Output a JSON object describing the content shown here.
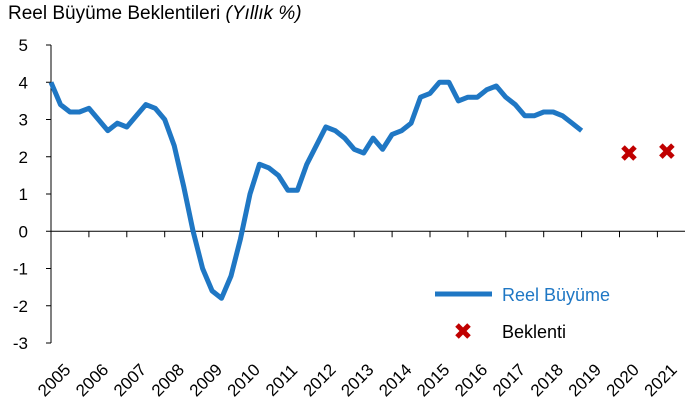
{
  "chart_data": {
    "type": "line",
    "title": "Reel Büyüme Beklentileri",
    "subtitle": "(Yıllık %)",
    "xlabel": "",
    "ylabel": "",
    "ylim": [
      -3,
      5
    ],
    "yticks": [
      "5",
      "4",
      "3",
      "2",
      "1",
      "0",
      "-1",
      "-2",
      "-3"
    ],
    "year_labels": [
      "2005",
      "2006",
      "2007",
      "2008",
      "2009",
      "2010",
      "2011",
      "2012",
      "2013",
      "2014",
      "2015",
      "2016",
      "2017",
      "2018",
      "2019",
      "2020",
      "2021"
    ],
    "grid": false,
    "legend_position": "bottom-right",
    "series": [
      {
        "name": "Reel Büyüme",
        "kind": "line",
        "color": "#1f77c4",
        "points": [
          [
            2005.0,
            4.0
          ],
          [
            2005.25,
            3.4
          ],
          [
            2005.5,
            3.2
          ],
          [
            2005.75,
            3.2
          ],
          [
            2006.0,
            3.3
          ],
          [
            2006.25,
            3.0
          ],
          [
            2006.5,
            2.7
          ],
          [
            2006.75,
            2.9
          ],
          [
            2007.0,
            2.8
          ],
          [
            2007.25,
            3.1
          ],
          [
            2007.5,
            3.4
          ],
          [
            2007.75,
            3.3
          ],
          [
            2008.0,
            3.0
          ],
          [
            2008.25,
            2.3
          ],
          [
            2008.5,
            1.2
          ],
          [
            2008.75,
            0.0
          ],
          [
            2009.0,
            -1.0
          ],
          [
            2009.25,
            -1.6
          ],
          [
            2009.5,
            -1.8
          ],
          [
            2009.75,
            -1.2
          ],
          [
            2010.0,
            -0.2
          ],
          [
            2010.25,
            1.0
          ],
          [
            2010.5,
            1.8
          ],
          [
            2010.75,
            1.7
          ],
          [
            2011.0,
            1.5
          ],
          [
            2011.25,
            1.1
          ],
          [
            2011.5,
            1.1
          ],
          [
            2011.75,
            1.8
          ],
          [
            2012.0,
            2.3
          ],
          [
            2012.25,
            2.8
          ],
          [
            2012.5,
            2.7
          ],
          [
            2012.75,
            2.5
          ],
          [
            2013.0,
            2.2
          ],
          [
            2013.25,
            2.1
          ],
          [
            2013.5,
            2.5
          ],
          [
            2013.75,
            2.2
          ],
          [
            2014.0,
            2.6
          ],
          [
            2014.25,
            2.7
          ],
          [
            2014.5,
            2.9
          ],
          [
            2014.75,
            3.6
          ],
          [
            2015.0,
            3.7
          ],
          [
            2015.25,
            4.0
          ],
          [
            2015.5,
            4.0
          ],
          [
            2015.75,
            3.5
          ],
          [
            2016.0,
            3.6
          ],
          [
            2016.25,
            3.6
          ],
          [
            2016.5,
            3.8
          ],
          [
            2016.75,
            3.9
          ],
          [
            2017.0,
            3.6
          ],
          [
            2017.25,
            3.4
          ],
          [
            2017.5,
            3.1
          ],
          [
            2017.75,
            3.1
          ],
          [
            2018.0,
            3.2
          ],
          [
            2018.25,
            3.2
          ],
          [
            2018.5,
            3.1
          ],
          [
            2018.75,
            2.9
          ],
          [
            2019.0,
            2.7
          ]
        ]
      },
      {
        "name": "Beklenti",
        "kind": "marker",
        "color": "#c00000",
        "points": [
          [
            2020.25,
            2.1
          ],
          [
            2021.25,
            2.15
          ]
        ]
      }
    ]
  }
}
